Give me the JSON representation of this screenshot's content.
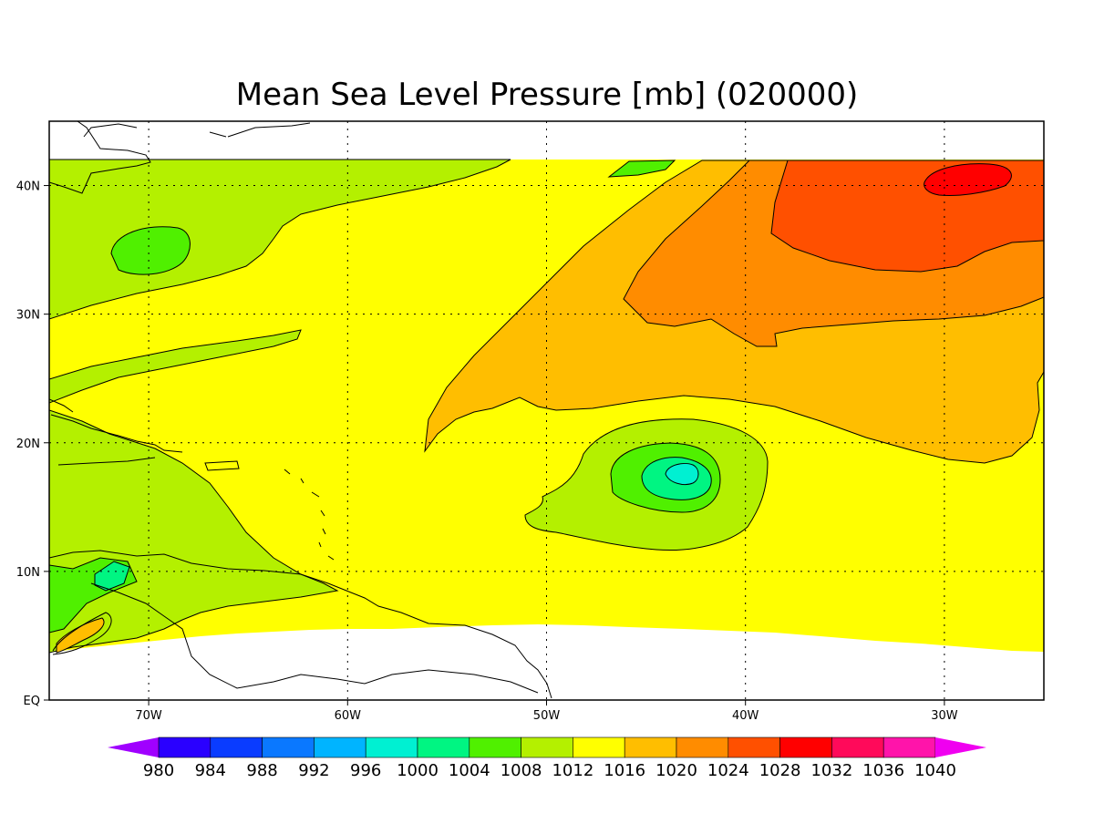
{
  "title": "Mean Sea Level Pressure [mb] (020000)",
  "map": {
    "lon_range": [
      -75,
      -25
    ],
    "lat_range": [
      0,
      45
    ],
    "data_lat_range": [
      4,
      42
    ],
    "grid_lons": [
      -70,
      -60,
      -50,
      -40,
      -30
    ],
    "grid_lats": [
      10,
      20,
      30,
      40
    ],
    "x_tick_labels": [
      "70W",
      "60W",
      "50W",
      "40W",
      "30W"
    ],
    "y_tick_labels": [
      "EQ",
      "10N",
      "20N",
      "30N",
      "40N"
    ],
    "grid_style": "dotted"
  },
  "features": [
    {
      "name": "low-pressure-center",
      "label_value": 1000,
      "lon": -43.5,
      "lat": 17.5
    },
    {
      "name": "high-pressure-center",
      "label_value": 1032,
      "lon": -31,
      "lat": 40.5
    },
    {
      "name": "continental-low",
      "label_value": 1008,
      "lon": -70,
      "lat": 35
    }
  ],
  "colorbar": {
    "levels": [
      "980",
      "984",
      "988",
      "992",
      "996",
      "1000",
      "1004",
      "1008",
      "1012",
      "1016",
      "1020",
      "1024",
      "1028",
      "1032",
      "1036",
      "1040"
    ],
    "colors": [
      "#a000ff",
      "#2a00ff",
      "#0a3cff",
      "#0a78ff",
      "#00b4ff",
      "#00f0d2",
      "#00f582",
      "#50f000",
      "#b4f000",
      "#ffff00",
      "#ffbe00",
      "#ff8c00",
      "#ff5000",
      "#ff0000",
      "#ff0a5a",
      "#ff14aa",
      "#f000f0"
    ]
  }
}
